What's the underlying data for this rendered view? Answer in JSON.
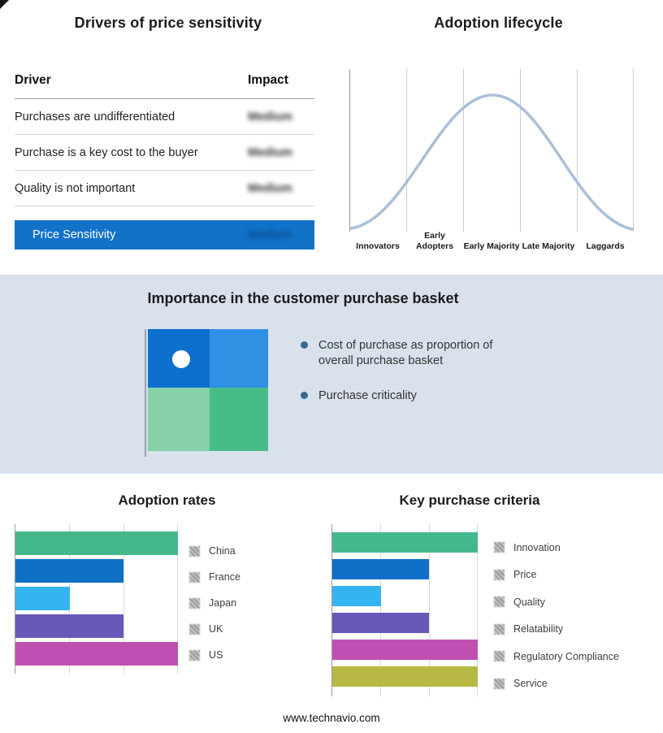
{
  "drivers_panel": {
    "title": "Drivers of price sensitivity",
    "col_driver": "Driver",
    "col_impact": "Impact",
    "rows": [
      {
        "driver": "Purchases are undifferentiated",
        "impact": "Medium"
      },
      {
        "driver": "Purchase is a key cost to the buyer",
        "impact": "Medium"
      },
      {
        "driver": "Quality is not important",
        "impact": "Medium"
      }
    ],
    "highlight": {
      "label": "Price Sensitivity",
      "impact": "Medium",
      "color": "#1172c8"
    },
    "impact_values_blurred": true
  },
  "basket": {
    "title": "Importance in the customer purchase basket",
    "bullets": [
      "Cost of purchase as proportion of overall purchase basket",
      "Purchase criticality"
    ],
    "band_bg": "#d9e1ec",
    "colors": {
      "top_left": "#0c70cf",
      "top_right": "#3090e4",
      "bottom_left": "#87d0a8",
      "bottom_right": "#47bc89"
    },
    "marker_quadrant": "top_left"
  },
  "chart_data": [
    {
      "id": "adoption_lifecycle",
      "type": "line",
      "title": "Adoption lifecycle",
      "x": [
        "Innovators",
        "Early Adopters",
        "Early Majority",
        "Late Majority",
        "Laggards"
      ],
      "description": "Bell-shaped adoption curve across five adopter stages, peaking at Early Majority",
      "curve_color": "#abbfd8",
      "grid": true,
      "legend_position": "none"
    },
    {
      "id": "adoption_rates",
      "type": "bar",
      "title": "Adoption rates",
      "orientation": "horizontal",
      "categories": [
        "China",
        "France",
        "Japan",
        "UK",
        "US"
      ],
      "values": [
        3,
        2,
        1,
        2,
        3
      ],
      "xmax": 3,
      "xlim": [
        0,
        3
      ],
      "value_unit": "relative gridline units (no axis labels shown)",
      "colors": [
        "#45b88b",
        "#1070c8",
        "#34b4f0",
        "#6659b8",
        "#c04fb2"
      ],
      "grid": true,
      "legend_position": "right"
    },
    {
      "id": "key_purchase_criteria",
      "type": "bar",
      "title": "Key purchase criteria",
      "orientation": "horizontal",
      "categories": [
        "Innovation",
        "Price",
        "Quality",
        "Relatability",
        "Regulatory Compliance",
        "Service"
      ],
      "values": [
        3,
        2,
        1,
        2,
        3,
        3
      ],
      "xmax": 3,
      "xlim": [
        0,
        3
      ],
      "value_unit": "relative gridline units (no axis labels shown)",
      "colors": [
        "#45b88b",
        "#1070c8",
        "#34b4f0",
        "#6659b8",
        "#c04fb2",
        "#b8b945"
      ],
      "grid": true,
      "legend_position": "right"
    }
  ],
  "footer": {
    "url": "www.technavio.com"
  }
}
